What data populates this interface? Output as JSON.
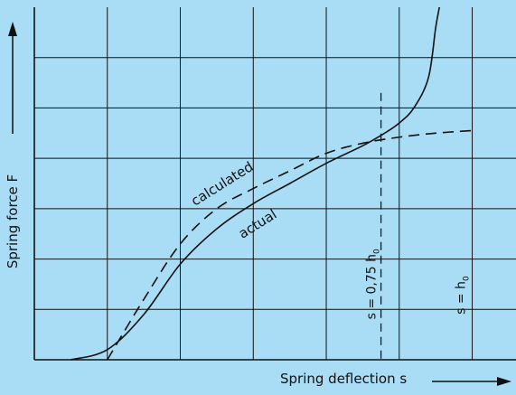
{
  "chart_data": {
    "type": "line",
    "title": "",
    "xlabel": "Spring deflection s",
    "ylabel": "Spring force F",
    "grid": true,
    "series": [
      {
        "name": "actual",
        "style": "solid",
        "points": [
          [
            -0.5,
            0
          ],
          [
            0,
            0.2
          ],
          [
            0.5,
            0.9
          ],
          [
            1,
            1.9
          ],
          [
            1.5,
            2.6
          ],
          [
            2,
            3.1
          ],
          [
            2.5,
            3.5
          ],
          [
            3,
            3.9
          ],
          [
            3.5,
            4.25
          ],
          [
            3.8,
            4.5
          ],
          [
            4,
            4.7
          ],
          [
            4.2,
            5.0
          ],
          [
            4.4,
            5.6
          ],
          [
            4.5,
            6.6
          ],
          [
            4.55,
            7.0
          ]
        ]
      },
      {
        "name": "calculated",
        "style": "dashed",
        "points": [
          [
            0,
            0
          ],
          [
            0.5,
            1.2
          ],
          [
            1,
            2.3
          ],
          [
            1.5,
            3.0
          ],
          [
            2,
            3.4
          ],
          [
            2.5,
            3.75
          ],
          [
            3,
            4.1
          ],
          [
            3.5,
            4.3
          ],
          [
            4,
            4.42
          ],
          [
            4.5,
            4.5
          ],
          [
            5,
            4.55
          ]
        ]
      }
    ],
    "verticals": [
      {
        "x": 3.75,
        "style": "dashed",
        "label": "s = 0,75 h",
        "sub": "0"
      },
      {
        "x": 5.0,
        "style": "none",
        "label": "s = h",
        "sub": "0"
      }
    ],
    "xlim": [
      -1,
      5.6
    ],
    "ylim": [
      0,
      7
    ],
    "x_gridlines": [
      0,
      1,
      2,
      3,
      4,
      5
    ],
    "y_gridlines": [
      1,
      2,
      3,
      4,
      5,
      6
    ]
  }
}
